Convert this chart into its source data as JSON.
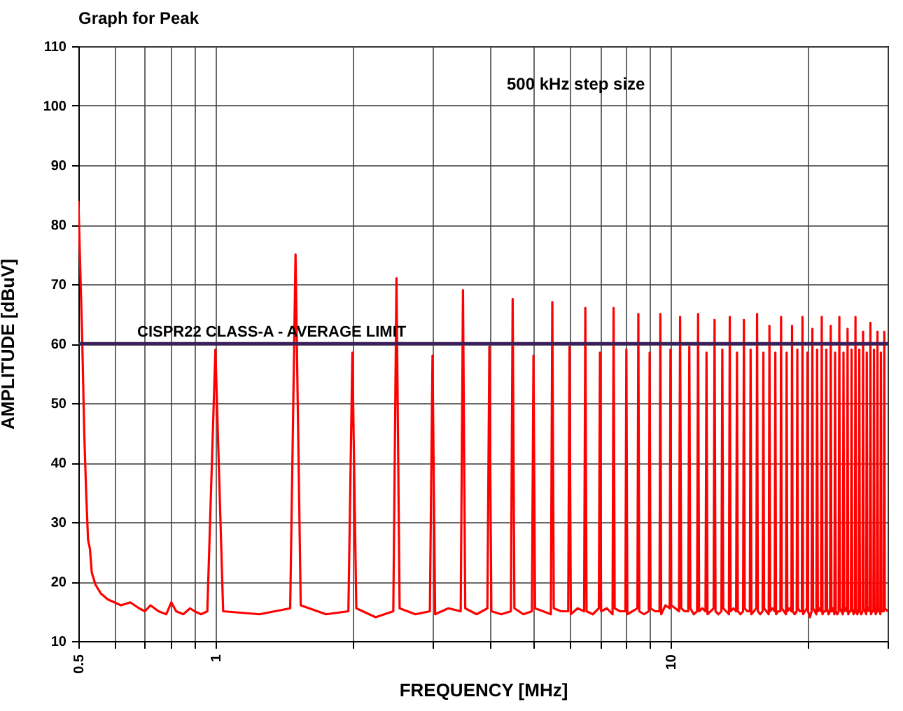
{
  "chart_data": {
    "type": "line",
    "title": "Graph for Peak",
    "xlabel": "FREQUENCY [MHz]",
    "ylabel": "AMPLITUDE [dBuV]",
    "annotations": [
      "500 kHz step size"
    ],
    "log": "x",
    "grid": true,
    "marker": "none",
    "line_style": "solid",
    "xlim": [
      0.5,
      30
    ],
    "ylim": [
      10,
      110
    ],
    "xticks": [
      0.5,
      {
        "value": 0.6,
        "label": null
      },
      {
        "value": 0.7,
        "label": null
      },
      {
        "value": 0.8,
        "label": null
      },
      {
        "value": 0.9,
        "label": null
      },
      1,
      {
        "value": 2,
        "label": null
      },
      {
        "value": 3,
        "label": null
      },
      {
        "value": 4,
        "label": null
      },
      {
        "value": 5,
        "label": null
      },
      {
        "value": 6,
        "label": null
      },
      {
        "value": 7,
        "label": null
      },
      {
        "value": 8,
        "label": null
      },
      {
        "value": 9,
        "label": null
      },
      10,
      {
        "value": 20,
        "label": null
      },
      {
        "value": 30,
        "label": null
      }
    ],
    "yticks": [
      10,
      20,
      30,
      40,
      50,
      60,
      70,
      80,
      90,
      100,
      110
    ],
    "ref_lines": [
      {
        "axis": "y",
        "value": 60,
        "label": "CISPR22 CLASS-A - AVERAGE LIMIT",
        "color": "#3b1e5c",
        "line_style": "solid"
      }
    ],
    "x": [
      0.5,
      0.505,
      0.51,
      0.515,
      0.52,
      0.525,
      0.53,
      0.535,
      0.545,
      0.56,
      0.58,
      0.6,
      0.62,
      0.65,
      0.68,
      0.7,
      0.72,
      0.75,
      0.78,
      0.8,
      0.82,
      0.85,
      0.88,
      0.9,
      0.93,
      0.96,
      1,
      1.04,
      1.25,
      1.46,
      1.5,
      1.54,
      1.75,
      1.96,
      2,
      2.04,
      2.25,
      2.46,
      2.5,
      2.54,
      2.75,
      2.96,
      3,
      3.04,
      3.25,
      3.46,
      3.5,
      3.54,
      3.75,
      3.96,
      4,
      4.04,
      4.25,
      4.46,
      4.5,
      4.54,
      4.75,
      4.96,
      5,
      5.04,
      5.25,
      5.46,
      5.5,
      5.54,
      5.75,
      5.96,
      6,
      6.04,
      6.25,
      6.46,
      6.5,
      6.54,
      6.75,
      6.96,
      7,
      7.04,
      7.25,
      7.46,
      7.5,
      7.54,
      7.75,
      7.96,
      8,
      8.04,
      8.25,
      8.46,
      8.5,
      8.54,
      8.75,
      8.96,
      9,
      9.04,
      9.25,
      9.46,
      9.5,
      9.54,
      9.75,
      9.96,
      10,
      10.04,
      10.25,
      10.44,
      10.5,
      10.56,
      10.75,
      10.94,
      11,
      11.06,
      11.25,
      11.44,
      11.5,
      11.56,
      11.75,
      11.94,
      12,
      12.06,
      12.25,
      12.44,
      12.5,
      12.56,
      12.75,
      12.94,
      13,
      13.06,
      13.25,
      13.44,
      13.5,
      13.56,
      13.75,
      13.94,
      14,
      14.06,
      14.25,
      14.44,
      14.5,
      14.56,
      14.75,
      14.94,
      15,
      15.06,
      15.25,
      15.44,
      15.5,
      15.56,
      15.75,
      15.94,
      16,
      16.06,
      16.25,
      16.44,
      16.5,
      16.56,
      16.75,
      16.94,
      17,
      17.06,
      17.25,
      17.44,
      17.5,
      17.56,
      17.75,
      17.94,
      18,
      18.06,
      18.25,
      18.44,
      18.5,
      18.56,
      18.75,
      18.94,
      19,
      19.06,
      19.25,
      19.44,
      19.5,
      19.56,
      19.75,
      19.94,
      20,
      20.06,
      20.25,
      20.42,
      20.5,
      20.58,
      20.75,
      20.92,
      21,
      21.08,
      21.25,
      21.42,
      21.5,
      21.58,
      21.75,
      21.92,
      22,
      22.08,
      22.25,
      22.42,
      22.5,
      22.58,
      22.75,
      22.92,
      23,
      23.08,
      23.25,
      23.42,
      23.5,
      23.58,
      23.75,
      23.92,
      24,
      24.08,
      24.25,
      24.42,
      24.5,
      24.58,
      24.75,
      24.92,
      25,
      25.08,
      25.25,
      25.42,
      25.5,
      25.58,
      25.75,
      25.92,
      26,
      26.08,
      26.25,
      26.42,
      26.5,
      26.58,
      26.75,
      26.92,
      27,
      27.08,
      27.25,
      27.42,
      27.5,
      27.58,
      27.75,
      27.92,
      28,
      28.08,
      28.25,
      28.42,
      28.5,
      28.58,
      28.75,
      28.92,
      29,
      29.08,
      29.25,
      29.42,
      29.5,
      29.58,
      30
    ],
    "series": [
      {
        "color": "#ff0000",
        "values": [
          84,
          72,
          60,
          45,
          35,
          27,
          25.5,
          21.5,
          19.5,
          18,
          17,
          16.5,
          16,
          16.5,
          15.5,
          15,
          16,
          15,
          14.5,
          16.5,
          15,
          14.5,
          15.5,
          15,
          14.5,
          15,
          59,
          15,
          14.5,
          15.5,
          75,
          16,
          14.5,
          15,
          58.5,
          15.5,
          14,
          15,
          71,
          15.5,
          14.5,
          15,
          58,
          14.5,
          15.5,
          15,
          69,
          15.5,
          14.5,
          15.5,
          59.5,
          15,
          14.5,
          15,
          67.5,
          15.5,
          14.5,
          15,
          58,
          15.5,
          15,
          14.5,
          67,
          15.5,
          15,
          15,
          59.5,
          14.5,
          15.5,
          15,
          66,
          15,
          14.5,
          15.5,
          58.5,
          15,
          15.5,
          14.5,
          66,
          15.5,
          15,
          15,
          59,
          14.5,
          15,
          15.5,
          65,
          15,
          14.5,
          15,
          58.5,
          15.5,
          15,
          15,
          65,
          14.5,
          16,
          15.5,
          59,
          16,
          15.5,
          15,
          64.5,
          15.5,
          15,
          15,
          59.5,
          15.5,
          14.5,
          15,
          65,
          15,
          15.5,
          15,
          58.5,
          14.5,
          15,
          15.5,
          64,
          15,
          14.5,
          15,
          59,
          15.5,
          15,
          14.5,
          64.5,
          15,
          15.5,
          15,
          58.5,
          15,
          14.5,
          15,
          64,
          15.5,
          15,
          15,
          59,
          14.5,
          15,
          15.5,
          65,
          15,
          14.5,
          15,
          58.5,
          15.5,
          15,
          14.5,
          63,
          15,
          15.5,
          15,
          58.5,
          14.5,
          15,
          15,
          64.5,
          15.5,
          15,
          14.5,
          58.5,
          15,
          15.5,
          15,
          63,
          15,
          14.5,
          15,
          59,
          15.5,
          15,
          15,
          64.5,
          14.5,
          15,
          15.5,
          58.5,
          15,
          14,
          15,
          62.5,
          15.5,
          15,
          14.5,
          59,
          15,
          15.5,
          15,
          64.5,
          14.5,
          15,
          15,
          59,
          15.5,
          14.5,
          15,
          63,
          15,
          15.5,
          14.5,
          58.5,
          15,
          14.5,
          15,
          64.5,
          15.5,
          15,
          14.5,
          58.5,
          15,
          15.5,
          15,
          62.5,
          14.5,
          15,
          15,
          59,
          15.5,
          14.5,
          15,
          64.5,
          15,
          14.5,
          15.5,
          59,
          15,
          14.5,
          15,
          62,
          15.5,
          15,
          14.5,
          58.5,
          15,
          15.5,
          15,
          63.5,
          14.5,
          15,
          15,
          59,
          15.5,
          14.5,
          15,
          62,
          15,
          15.5,
          14.5,
          58.5,
          15,
          15,
          15,
          62,
          15.5,
          15
        ]
      }
    ]
  }
}
